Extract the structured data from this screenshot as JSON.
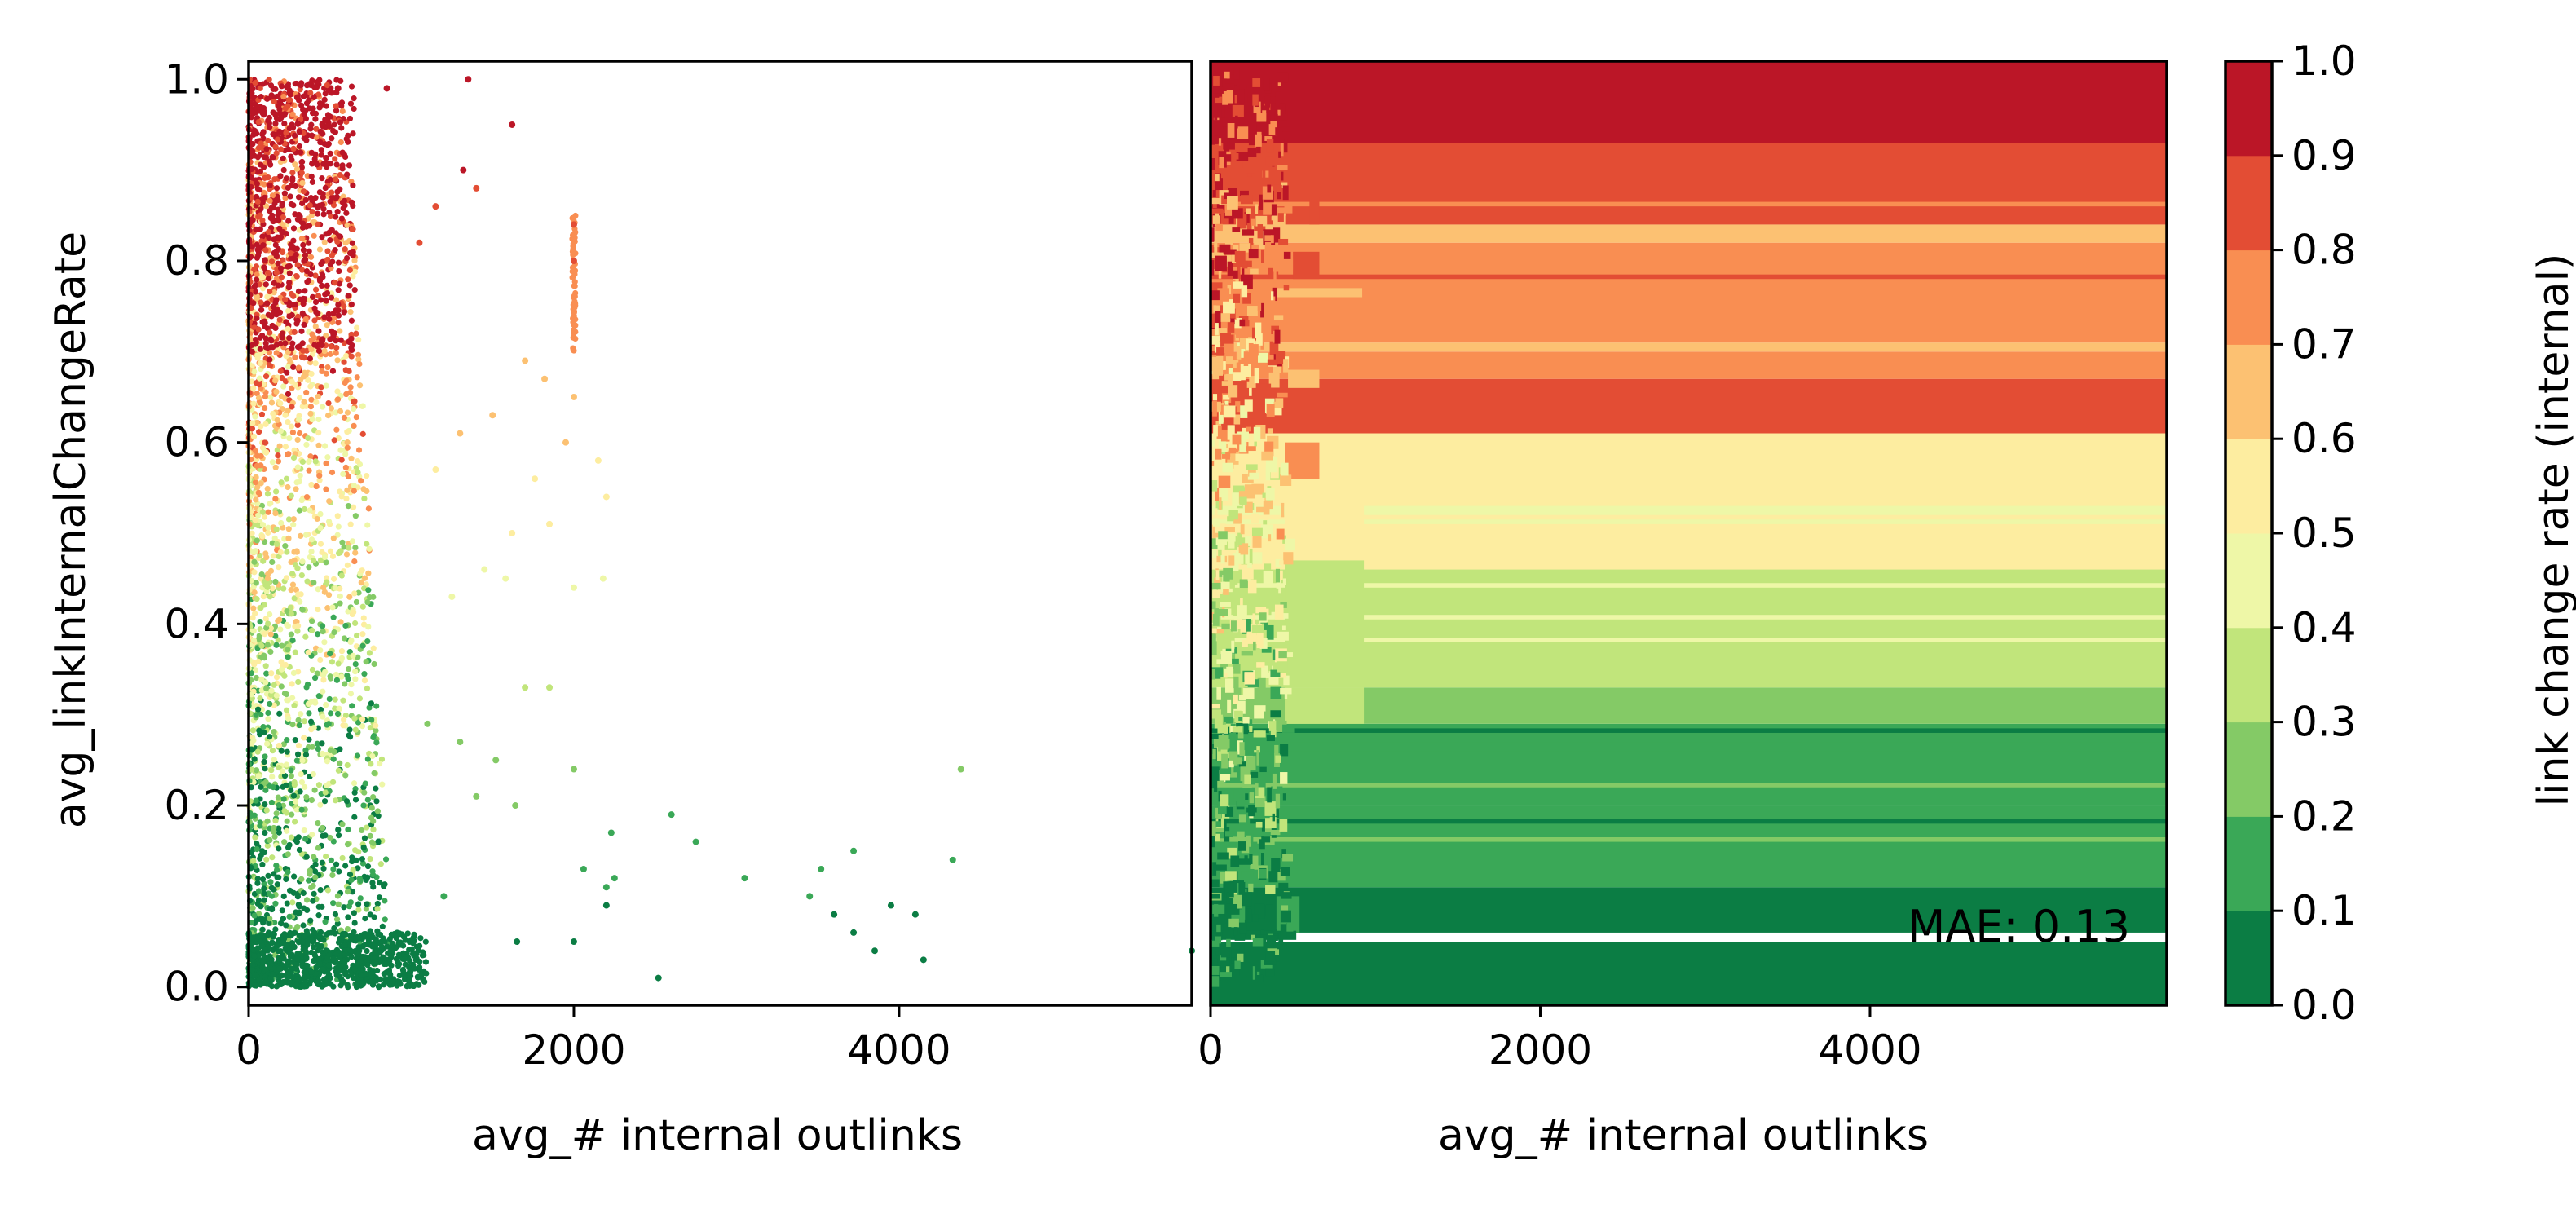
{
  "chart_data": [
    {
      "type": "scatter",
      "xlabel": "avg_# internal outlinks",
      "ylabel": "avg_linkInternalChangeRate",
      "xlim": [
        0,
        5800
      ],
      "ylim": [
        -0.02,
        1.02
      ],
      "xticks": [
        "0",
        "2000",
        "4000"
      ],
      "xtick_values": [
        0,
        2000,
        4000
      ],
      "yticks": [
        "0.0",
        "0.2",
        "0.4",
        "0.6",
        "0.8",
        "1.0"
      ],
      "ytick_values": [
        0.0,
        0.2,
        0.4,
        0.6,
        0.8,
        1.0
      ],
      "color_encoding": "link change rate (internal)",
      "colormap": "RdYlGn_r (10 bins)",
      "note": "Dense point cloud concentrated at x < 1000; visible isolated points listed below.",
      "visible_points": [
        {
          "x": 300,
          "y": 0.98
        },
        {
          "x": 550,
          "y": 0.99
        },
        {
          "x": 850,
          "y": 0.99
        },
        {
          "x": 1350,
          "y": 1.0
        },
        {
          "x": 1320,
          "y": 0.9
        },
        {
          "x": 1400,
          "y": 0.88
        },
        {
          "x": 1620,
          "y": 0.95
        },
        {
          "x": 1050,
          "y": 0.82
        },
        {
          "x": 1150,
          "y": 0.86
        },
        {
          "x": 1700,
          "y": 0.69
        },
        {
          "x": 1820,
          "y": 0.67
        },
        {
          "x": 2000,
          "y": 0.84
        },
        {
          "x": 2000,
          "y": 0.8
        },
        {
          "x": 2000,
          "y": 0.76
        },
        {
          "x": 2000,
          "y": 0.73
        },
        {
          "x": 2000,
          "y": 0.65
        },
        {
          "x": 1950,
          "y": 0.6
        },
        {
          "x": 2150,
          "y": 0.58
        },
        {
          "x": 1760,
          "y": 0.56
        },
        {
          "x": 2200,
          "y": 0.54
        },
        {
          "x": 1500,
          "y": 0.63
        },
        {
          "x": 1300,
          "y": 0.61
        },
        {
          "x": 1150,
          "y": 0.57
        },
        {
          "x": 1620,
          "y": 0.5
        },
        {
          "x": 1850,
          "y": 0.51
        },
        {
          "x": 2000,
          "y": 0.44
        },
        {
          "x": 2180,
          "y": 0.45
        },
        {
          "x": 1450,
          "y": 0.46
        },
        {
          "x": 1580,
          "y": 0.45
        },
        {
          "x": 1250,
          "y": 0.43
        },
        {
          "x": 1700,
          "y": 0.33
        },
        {
          "x": 1850,
          "y": 0.33
        },
        {
          "x": 1520,
          "y": 0.25
        },
        {
          "x": 1640,
          "y": 0.2
        },
        {
          "x": 2000,
          "y": 0.24
        },
        {
          "x": 1400,
          "y": 0.21
        },
        {
          "x": 1100,
          "y": 0.29
        },
        {
          "x": 1300,
          "y": 0.27
        },
        {
          "x": 1200,
          "y": 0.1
        },
        {
          "x": 1650,
          "y": 0.05
        },
        {
          "x": 2000,
          "y": 0.05
        },
        {
          "x": 2060,
          "y": 0.13
        },
        {
          "x": 2230,
          "y": 0.17
        },
        {
          "x": 2200,
          "y": 0.09
        },
        {
          "x": 2200,
          "y": 0.11
        },
        {
          "x": 2250,
          "y": 0.12
        },
        {
          "x": 2520,
          "y": 0.01
        },
        {
          "x": 2600,
          "y": 0.19
        },
        {
          "x": 2750,
          "y": 0.16
        },
        {
          "x": 3050,
          "y": 0.12
        },
        {
          "x": 3450,
          "y": 0.1
        },
        {
          "x": 3520,
          "y": 0.13
        },
        {
          "x": 3600,
          "y": 0.08
        },
        {
          "x": 3720,
          "y": 0.15
        },
        {
          "x": 3720,
          "y": 0.06
        },
        {
          "x": 3850,
          "y": 0.04
        },
        {
          "x": 3950,
          "y": 0.09
        },
        {
          "x": 4100,
          "y": 0.08
        },
        {
          "x": 4150,
          "y": 0.03
        },
        {
          "x": 4330,
          "y": 0.14
        },
        {
          "x": 4380,
          "y": 0.24
        },
        {
          "x": 5800,
          "y": 0.04
        }
      ]
    },
    {
      "type": "heatmap",
      "xlabel": "avg_# internal outlinks",
      "xlim": [
        0,
        5800
      ],
      "ylim": [
        -0.02,
        1.02
      ],
      "xticks": [
        "0",
        "2000",
        "4000"
      ],
      "xtick_values": [
        0,
        2000,
        4000
      ],
      "annotation": "MAE: 0.13",
      "note": "Predicted change-rate surface; horizontal bands whose color is constant beyond the dense region near x=0.",
      "bands": [
        {
          "y0": -0.02,
          "y1": 0.05,
          "value": 0.05
        },
        {
          "y0": 0.05,
          "y1": 0.06,
          "value": -1
        },
        {
          "y0": 0.06,
          "y1": 0.11,
          "value": 0.05
        },
        {
          "y0": 0.11,
          "y1": 0.2,
          "value": 0.15
        },
        {
          "y0": 0.2,
          "y1": 0.29,
          "value": 0.15
        },
        {
          "y0": 0.29,
          "y1": 0.33,
          "value": 0.25
        },
        {
          "y0": 0.33,
          "y1": 0.4,
          "value": 0.35
        },
        {
          "y0": 0.4,
          "y1": 0.46,
          "value": 0.35
        },
        {
          "y0": 0.46,
          "y1": 0.5,
          "value": 0.55
        },
        {
          "y0": 0.5,
          "y1": 0.61,
          "value": 0.55
        },
        {
          "y0": 0.61,
          "y1": 0.67,
          "value": 0.85
        },
        {
          "y0": 0.67,
          "y1": 0.7,
          "value": 0.75
        },
        {
          "y0": 0.7,
          "y1": 0.71,
          "value": 0.65
        },
        {
          "y0": 0.71,
          "y1": 0.82,
          "value": 0.75
        },
        {
          "y0": 0.82,
          "y1": 0.84,
          "value": 0.65
        },
        {
          "y0": 0.84,
          "y1": 0.93,
          "value": 0.85
        },
        {
          "y0": 0.93,
          "y1": 1.02,
          "value": 0.95
        }
      ],
      "stripes": [
        {
          "y0": 0.26,
          "y1": 0.27,
          "value": 0.15
        },
        {
          "y0": 0.28,
          "y1": 0.285,
          "value": 0.05
        },
        {
          "y0": 0.22,
          "y1": 0.225,
          "value": 0.25
        },
        {
          "y0": 0.16,
          "y1": 0.165,
          "value": 0.25
        },
        {
          "y0": 0.18,
          "y1": 0.185,
          "value": 0.05
        },
        {
          "y0": 0.38,
          "y1": 0.385,
          "value": 0.45
        },
        {
          "y0": 0.405,
          "y1": 0.41,
          "value": 0.45
        },
        {
          "y0": 0.44,
          "y1": 0.445,
          "value": 0.45
        },
        {
          "y0": 0.51,
          "y1": 0.515,
          "value": 0.45
        },
        {
          "y0": 0.52,
          "y1": 0.53,
          "value": 0.45
        },
        {
          "y0": 0.78,
          "y1": 0.785,
          "value": 0.85
        },
        {
          "y0": 0.86,
          "y1": 0.865,
          "value": 0.75
        }
      ],
      "blocks": [
        {
          "x0": 600,
          "x1": 660,
          "y0": 0.84,
          "y1": 0.87,
          "value": 0.85
        },
        {
          "x0": 500,
          "x1": 660,
          "y0": 0.78,
          "y1": 0.81,
          "value": 0.85
        },
        {
          "x0": 400,
          "x1": 920,
          "y0": 0.76,
          "y1": 0.77,
          "value": 0.65
        },
        {
          "x0": 480,
          "x1": 660,
          "y0": 0.73,
          "y1": 0.75,
          "value": 0.75
        },
        {
          "x0": 470,
          "x1": 660,
          "y0": 0.66,
          "y1": 0.68,
          "value": 0.65
        },
        {
          "x0": 450,
          "x1": 660,
          "y0": 0.56,
          "y1": 0.6,
          "value": 0.75
        },
        {
          "x0": 450,
          "x1": 930,
          "y0": 0.5,
          "y1": 0.55,
          "value": 0.55
        },
        {
          "x0": 450,
          "x1": 930,
          "y0": 0.33,
          "y1": 0.47,
          "value": 0.35
        },
        {
          "x0": 450,
          "x1": 930,
          "y0": 0.29,
          "y1": 0.33,
          "value": 0.35
        },
        {
          "x0": 400,
          "x1": 540,
          "y0": 0.06,
          "y1": 0.1,
          "value": 0.15
        }
      ]
    },
    {
      "type": "colorbar",
      "label": "link change rate (internal)",
      "ticks": [
        "0.0",
        "0.1",
        "0.2",
        "0.3",
        "0.4",
        "0.5",
        "0.6",
        "0.7",
        "0.8",
        "0.9",
        "1.0"
      ],
      "tick_values": [
        0.0,
        0.1,
        0.2,
        0.3,
        0.4,
        0.5,
        0.6,
        0.7,
        0.8,
        0.9,
        1.0
      ],
      "colors": [
        "#0b7d44",
        "#3aa857",
        "#84ca66",
        "#c1e57b",
        "#eef7a7",
        "#fdeda0",
        "#fcc172",
        "#f98e52",
        "#e34d34",
        "#bb1627"
      ]
    }
  ]
}
